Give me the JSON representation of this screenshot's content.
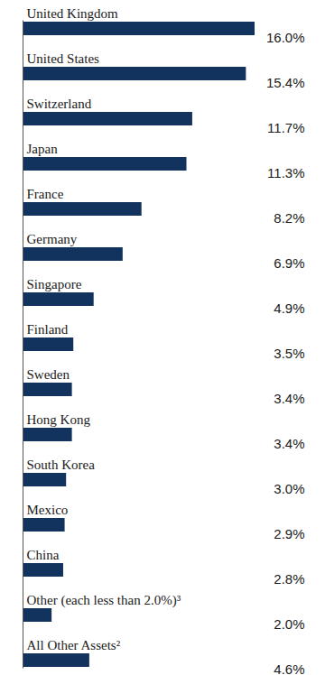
{
  "chart_data": {
    "type": "bar",
    "orientation": "horizontal",
    "categories": [
      "United Kingdom",
      "United States",
      "Switzerland",
      "Japan",
      "France",
      "Germany",
      "Singapore",
      "Finland",
      "Sweden",
      "Hong Kong",
      "South Korea",
      "Mexico",
      "China",
      "Other (each less than 2.0%)³",
      "All Other Assets²"
    ],
    "values": [
      16.0,
      15.4,
      11.7,
      11.3,
      8.2,
      6.9,
      4.9,
      3.5,
      3.4,
      3.4,
      3.0,
      2.9,
      2.8,
      2.0,
      4.6
    ],
    "value_labels": [
      "16.0%",
      "15.4%",
      "11.7%",
      "11.3%",
      "8.2%",
      "6.9%",
      "4.9%",
      "3.5%",
      "3.4%",
      "3.4%",
      "3.0%",
      "2.9%",
      "2.8%",
      "2.0%",
      "4.6%"
    ],
    "color": "#13335f",
    "xlim": [
      0,
      16
    ],
    "data_labels": true,
    "tick_labels": false
  }
}
